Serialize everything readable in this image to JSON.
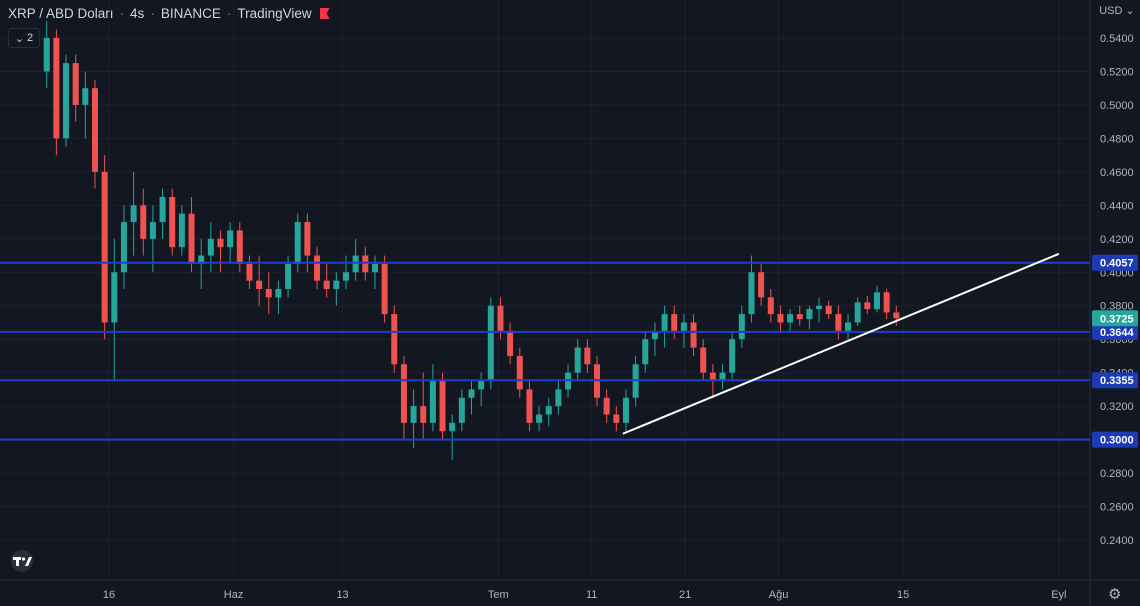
{
  "header": {
    "symbol": "XRP / ABD Doları",
    "interval": "4s",
    "exchange": "BINANCE",
    "source": "TradingView",
    "collapse_label": "2",
    "currency": "USD"
  },
  "icons": {
    "collapse": "chevron-down-icon",
    "logo": "tradingview-logo",
    "settings": "gear-icon",
    "flag": "flag-icon"
  },
  "colors": {
    "background": "#131722",
    "up": "#26a69a",
    "down": "#ef5350",
    "level_line": "#1e3fc8",
    "trendline": "#ffffff",
    "last_price": "#26a69a"
  },
  "chart_data": {
    "type": "candlestick",
    "ylim": [
      0.23,
      0.56
    ],
    "yticks": [
      "0.5400",
      "0.5200",
      "0.5000",
      "0.4800",
      "0.4600",
      "0.4400",
      "0.4200",
      "0.4000",
      "0.3800",
      "0.3600",
      "0.3400",
      "0.3200",
      "0.3000",
      "0.2800",
      "0.2600",
      "0.2400"
    ],
    "xlim": [
      0,
      70
    ],
    "xticks": [
      {
        "label": "16",
        "x": 7
      },
      {
        "label": "Haz",
        "x": 15
      },
      {
        "label": "13",
        "x": 22
      },
      {
        "label": "Tem",
        "x": 32
      },
      {
        "label": "11",
        "x": 38
      },
      {
        "label": "21",
        "x": 44
      },
      {
        "label": "Ağu",
        "x": 50
      },
      {
        "label": "15",
        "x": 58
      },
      {
        "label": "Eyl",
        "x": 68
      }
    ],
    "levels": [
      {
        "value": 0.4057,
        "label": "0.4057"
      },
      {
        "value": 0.3644,
        "label": "0.3644"
      },
      {
        "value": 0.3355,
        "label": "0.3355"
      },
      {
        "value": 0.3,
        "label": "0.3000"
      }
    ],
    "last_price": {
      "value": 0.3725,
      "label": "0.3725"
    },
    "trendline": {
      "x1": 40,
      "y1": 0.3035,
      "x2": 68,
      "y2": 0.411
    },
    "candles_x_start": 3,
    "candles_x_step": 0.62,
    "candles": [
      [
        0.52,
        0.55,
        0.51,
        0.54
      ],
      [
        0.54,
        0.545,
        0.47,
        0.48
      ],
      [
        0.48,
        0.53,
        0.475,
        0.525
      ],
      [
        0.525,
        0.53,
        0.49,
        0.5
      ],
      [
        0.5,
        0.52,
        0.48,
        0.51
      ],
      [
        0.51,
        0.515,
        0.45,
        0.46
      ],
      [
        0.46,
        0.47,
        0.36,
        0.37
      ],
      [
        0.37,
        0.42,
        0.335,
        0.4
      ],
      [
        0.4,
        0.44,
        0.39,
        0.43
      ],
      [
        0.43,
        0.46,
        0.41,
        0.44
      ],
      [
        0.44,
        0.45,
        0.41,
        0.42
      ],
      [
        0.42,
        0.44,
        0.4,
        0.43
      ],
      [
        0.43,
        0.45,
        0.42,
        0.445
      ],
      [
        0.445,
        0.45,
        0.41,
        0.415
      ],
      [
        0.415,
        0.44,
        0.41,
        0.435
      ],
      [
        0.435,
        0.445,
        0.4,
        0.405
      ],
      [
        0.405,
        0.42,
        0.39,
        0.41
      ],
      [
        0.41,
        0.43,
        0.4,
        0.42
      ],
      [
        0.42,
        0.425,
        0.4,
        0.415
      ],
      [
        0.415,
        0.43,
        0.405,
        0.425
      ],
      [
        0.425,
        0.43,
        0.4,
        0.405
      ],
      [
        0.405,
        0.41,
        0.39,
        0.395
      ],
      [
        0.395,
        0.41,
        0.38,
        0.39
      ],
      [
        0.39,
        0.4,
        0.375,
        0.385
      ],
      [
        0.385,
        0.395,
        0.375,
        0.39
      ],
      [
        0.39,
        0.41,
        0.385,
        0.405
      ],
      [
        0.405,
        0.435,
        0.4,
        0.43
      ],
      [
        0.43,
        0.435,
        0.4,
        0.41
      ],
      [
        0.41,
        0.415,
        0.39,
        0.395
      ],
      [
        0.395,
        0.405,
        0.385,
        0.39
      ],
      [
        0.39,
        0.4,
        0.38,
        0.395
      ],
      [
        0.395,
        0.41,
        0.39,
        0.4
      ],
      [
        0.4,
        0.42,
        0.395,
        0.41
      ],
      [
        0.41,
        0.415,
        0.395,
        0.4
      ],
      [
        0.4,
        0.41,
        0.39,
        0.405
      ],
      [
        0.405,
        0.41,
        0.37,
        0.375
      ],
      [
        0.375,
        0.38,
        0.34,
        0.345
      ],
      [
        0.345,
        0.35,
        0.3,
        0.31
      ],
      [
        0.31,
        0.33,
        0.295,
        0.32
      ],
      [
        0.32,
        0.34,
        0.3,
        0.31
      ],
      [
        0.31,
        0.345,
        0.305,
        0.335
      ],
      [
        0.335,
        0.34,
        0.3,
        0.305
      ],
      [
        0.305,
        0.315,
        0.288,
        0.31
      ],
      [
        0.31,
        0.33,
        0.305,
        0.325
      ],
      [
        0.325,
        0.335,
        0.315,
        0.33
      ],
      [
        0.33,
        0.34,
        0.32,
        0.335
      ],
      [
        0.335,
        0.385,
        0.33,
        0.38
      ],
      [
        0.38,
        0.385,
        0.36,
        0.365
      ],
      [
        0.365,
        0.37,
        0.345,
        0.35
      ],
      [
        0.35,
        0.355,
        0.325,
        0.33
      ],
      [
        0.33,
        0.335,
        0.305,
        0.31
      ],
      [
        0.31,
        0.32,
        0.305,
        0.315
      ],
      [
        0.315,
        0.325,
        0.308,
        0.32
      ],
      [
        0.32,
        0.335,
        0.315,
        0.33
      ],
      [
        0.33,
        0.345,
        0.325,
        0.34
      ],
      [
        0.34,
        0.36,
        0.335,
        0.355
      ],
      [
        0.355,
        0.36,
        0.34,
        0.345
      ],
      [
        0.345,
        0.35,
        0.32,
        0.325
      ],
      [
        0.325,
        0.33,
        0.31,
        0.315
      ],
      [
        0.315,
        0.32,
        0.305,
        0.31
      ],
      [
        0.31,
        0.33,
        0.305,
        0.325
      ],
      [
        0.325,
        0.35,
        0.32,
        0.345
      ],
      [
        0.345,
        0.365,
        0.34,
        0.36
      ],
      [
        0.36,
        0.37,
        0.35,
        0.365
      ],
      [
        0.365,
        0.38,
        0.355,
        0.375
      ],
      [
        0.375,
        0.38,
        0.36,
        0.365
      ],
      [
        0.365,
        0.375,
        0.355,
        0.37
      ],
      [
        0.37,
        0.375,
        0.35,
        0.355
      ],
      [
        0.355,
        0.36,
        0.335,
        0.34
      ],
      [
        0.34,
        0.345,
        0.325,
        0.335
      ],
      [
        0.335,
        0.345,
        0.33,
        0.34
      ],
      [
        0.34,
        0.365,
        0.335,
        0.36
      ],
      [
        0.36,
        0.38,
        0.355,
        0.375
      ],
      [
        0.375,
        0.41,
        0.37,
        0.4
      ],
      [
        0.4,
        0.405,
        0.38,
        0.385
      ],
      [
        0.385,
        0.39,
        0.37,
        0.375
      ],
      [
        0.375,
        0.38,
        0.365,
        0.37
      ],
      [
        0.37,
        0.378,
        0.365,
        0.375
      ],
      [
        0.375,
        0.38,
        0.368,
        0.372
      ],
      [
        0.372,
        0.38,
        0.366,
        0.378
      ],
      [
        0.378,
        0.385,
        0.37,
        0.38
      ],
      [
        0.38,
        0.383,
        0.372,
        0.375
      ],
      [
        0.375,
        0.38,
        0.36,
        0.365
      ],
      [
        0.365,
        0.375,
        0.36,
        0.37
      ],
      [
        0.37,
        0.385,
        0.368,
        0.382
      ],
      [
        0.382,
        0.386,
        0.375,
        0.378
      ],
      [
        0.378,
        0.392,
        0.376,
        0.388
      ],
      [
        0.388,
        0.39,
        0.372,
        0.376
      ],
      [
        0.376,
        0.38,
        0.368,
        0.3725
      ]
    ]
  }
}
